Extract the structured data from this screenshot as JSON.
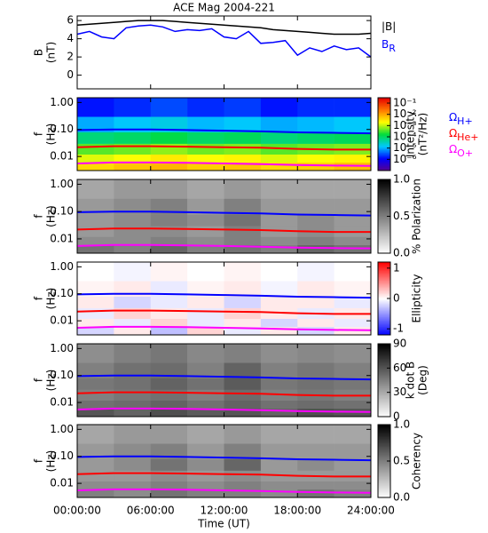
{
  "chart_data": [
    {
      "type": "line",
      "title": "ACE Mag 2004-221",
      "ylabel": [
        "B",
        "(nT)"
      ],
      "xlim": [
        0,
        24
      ],
      "xticks": [
        0,
        6,
        12,
        18,
        24
      ],
      "ylim": [
        -1.5,
        6.5
      ],
      "yticks": [
        0,
        2,
        4,
        6
      ],
      "x": [
        0,
        1,
        2,
        3,
        4,
        5,
        6,
        7,
        8,
        9,
        10,
        11,
        12,
        13,
        14,
        15,
        16,
        17,
        18,
        19,
        20,
        21,
        22,
        23,
        24
      ],
      "series": [
        {
          "name": "|B|",
          "color": "#000000",
          "values": [
            5.5,
            5.6,
            5.7,
            5.8,
            5.9,
            6.0,
            6.0,
            6.0,
            5.9,
            5.8,
            5.7,
            5.6,
            5.5,
            5.4,
            5.3,
            5.2,
            5.0,
            4.9,
            4.8,
            4.7,
            4.6,
            4.5,
            4.5,
            4.5,
            4.6
          ]
        },
        {
          "name": "B",
          "name_sub": "R",
          "color": "#0000ff",
          "values": [
            4.5,
            4.8,
            4.2,
            4.0,
            5.2,
            5.4,
            5.5,
            5.3,
            4.8,
            5.0,
            4.9,
            5.1,
            4.2,
            4.0,
            4.8,
            3.5,
            3.6,
            3.8,
            2.2,
            3.0,
            2.6,
            3.2,
            2.8,
            3.0,
            2.0
          ]
        }
      ]
    },
    {
      "type": "heatmap",
      "ylabel": [
        "f",
        "(Hz)"
      ],
      "log_y": true,
      "xlim": [
        0,
        24
      ],
      "xticks": [
        0,
        6,
        12,
        18,
        24
      ],
      "ylim": [
        0.003,
        1.5
      ],
      "yticks": [
        {
          "value": 1,
          "label": "1.00"
        },
        {
          "value": 0.1,
          "label": "0.10"
        },
        {
          "value": 0.01,
          "label": "0.01"
        }
      ],
      "x_edges": [
        0,
        3,
        6,
        9,
        12,
        15,
        18,
        21,
        24
      ],
      "y_edges": [
        0.003,
        0.006,
        0.012,
        0.03,
        0.08,
        0.3,
        1.5
      ],
      "z": [
        [
          0.004,
          0.006,
          0.008,
          0.005,
          0.006,
          0.004,
          0.005,
          0.007
        ],
        [
          0.0015,
          0.002,
          0.003,
          0.002,
          0.0025,
          0.0015,
          0.002,
          0.0025
        ],
        [
          0.0004,
          0.0005,
          0.0007,
          0.0005,
          0.0006,
          0.0004,
          0.0005,
          0.0006
        ],
        [
          8e-05,
          0.0001,
          0.00015,
          0.0001,
          0.00012,
          8e-05,
          0.0001,
          0.00012
        ],
        [
          1e-05,
          1.5e-05,
          2e-05,
          1.2e-05,
          1.5e-05,
          1e-05,
          1.2e-05,
          1.5e-05
        ],
        [
          1.5e-06,
          2e-06,
          3e-06,
          2e-06,
          2.5e-06,
          1.5e-06,
          2e-06,
          2e-06
        ]
      ],
      "colormap": "rainbow",
      "log_c": true,
      "clim": [
        1e-07,
        0.3
      ],
      "cticks": [
        {
          "value": 0.1,
          "label": "10⁻¹"
        },
        {
          "value": 0.01,
          "label": "10⁻²"
        },
        {
          "value": 0.001,
          "label": "10⁻³"
        },
        {
          "value": 0.0001,
          "label": "10⁻⁴"
        },
        {
          "value": 1e-05,
          "label": "10⁻⁵"
        },
        {
          "value": 1e-06,
          "label": "10⁻⁶"
        }
      ],
      "clabel": [
        "Intensity",
        "(nT²/Hz)"
      ],
      "x": [
        0,
        3,
        6,
        9,
        12,
        15,
        18,
        21,
        24
      ],
      "series": [
        {
          "name": "Ω",
          "name_sub": "H+",
          "color": "#0000ff",
          "values": [
            0.095,
            0.1,
            0.1,
            0.095,
            0.09,
            0.085,
            0.078,
            0.075,
            0.072
          ]
        },
        {
          "name": "Ω",
          "name_sub": "He+",
          "color": "#ff0000",
          "values": [
            0.022,
            0.024,
            0.024,
            0.023,
            0.022,
            0.021,
            0.019,
            0.018,
            0.018
          ]
        },
        {
          "name": "Ω",
          "name_sub": "O+",
          "color": "#ff00ff",
          "values": [
            0.0055,
            0.006,
            0.006,
            0.0058,
            0.0055,
            0.0052,
            0.0048,
            0.0046,
            0.0045
          ]
        }
      ]
    },
    {
      "type": "heatmap",
      "ylabel": [
        "f",
        "(Hz)"
      ],
      "log_y": true,
      "xlim": [
        0,
        24
      ],
      "xticks": [
        0,
        6,
        12,
        18,
        24
      ],
      "ylim": [
        0.003,
        1.5
      ],
      "yticks": [
        {
          "value": 1,
          "label": "1.00"
        },
        {
          "value": 0.1,
          "label": "0.10"
        },
        {
          "value": 0.01,
          "label": "0.01"
        }
      ],
      "x_edges": [
        0,
        3,
        6,
        9,
        12,
        15,
        18,
        21,
        24
      ],
      "y_edges": [
        0.003,
        0.006,
        0.012,
        0.03,
        0.08,
        0.3,
        1.5
      ],
      "z": [
        [
          0.55,
          0.5,
          0.6,
          0.5,
          0.55,
          0.5,
          0.6,
          0.55
        ],
        [
          0.45,
          0.45,
          0.5,
          0.45,
          0.5,
          0.45,
          0.5,
          0.45
        ],
        [
          0.4,
          0.45,
          0.45,
          0.4,
          0.5,
          0.4,
          0.45,
          0.4
        ],
        [
          0.4,
          0.45,
          0.5,
          0.45,
          0.55,
          0.4,
          0.45,
          0.4
        ],
        [
          0.4,
          0.45,
          0.5,
          0.4,
          0.5,
          0.4,
          0.4,
          0.4
        ],
        [
          0.35,
          0.4,
          0.4,
          0.35,
          0.4,
          0.35,
          0.35,
          0.35
        ]
      ],
      "colormap": "gray",
      "clim": [
        0,
        1
      ],
      "cticks": [
        {
          "value": 1,
          "label": "1.0"
        },
        {
          "value": 0.5,
          "label": "0.5"
        },
        {
          "value": 0,
          "label": "0.0"
        }
      ],
      "clabel": [
        "% Polarization"
      ],
      "x": [
        0,
        3,
        6,
        9,
        12,
        15,
        18,
        21,
        24
      ],
      "series": [
        {
          "color": "#0000ff",
          "values": [
            0.095,
            0.1,
            0.1,
            0.095,
            0.09,
            0.085,
            0.078,
            0.075,
            0.072
          ]
        },
        {
          "color": "#ff0000",
          "values": [
            0.022,
            0.024,
            0.024,
            0.023,
            0.022,
            0.021,
            0.019,
            0.018,
            0.018
          ]
        },
        {
          "color": "#ff00ff",
          "values": [
            0.0055,
            0.006,
            0.006,
            0.0058,
            0.0055,
            0.0052,
            0.0048,
            0.0046,
            0.0045
          ]
        }
      ]
    },
    {
      "type": "heatmap",
      "ylabel": [
        "f",
        "(Hz)"
      ],
      "log_y": true,
      "xlim": [
        0,
        24
      ],
      "xticks": [
        0,
        6,
        12,
        18,
        24
      ],
      "ylim": [
        0.003,
        1.5
      ],
      "yticks": [
        {
          "value": 1,
          "label": "1.00"
        },
        {
          "value": 0.1,
          "label": "0.10"
        },
        {
          "value": 0.01,
          "label": "0.01"
        }
      ],
      "x_edges": [
        0,
        3,
        6,
        9,
        12,
        15,
        18,
        21,
        24
      ],
      "y_edges": [
        0.003,
        0.006,
        0.012,
        0.03,
        0.08,
        0.3,
        1.5
      ],
      "z": [
        [
          -0.2,
          0.1,
          -0.3,
          0.2,
          -0.1,
          0.1,
          -0.2,
          0.1
        ],
        [
          0.1,
          -0.1,
          0.2,
          -0.1,
          0.1,
          -0.2,
          0.1,
          -0.1
        ],
        [
          -0.1,
          0.2,
          0.1,
          -0.1,
          0.2,
          0.1,
          -0.1,
          0.1
        ],
        [
          0.1,
          -0.2,
          -0.1,
          0.1,
          -0.2,
          0.1,
          0.1,
          -0.1
        ],
        [
          0.05,
          0.1,
          -0.1,
          0.05,
          0.1,
          -0.05,
          0.1,
          0.05
        ],
        [
          0.0,
          -0.05,
          0.05,
          0.0,
          0.05,
          0.0,
          -0.05,
          0.0
        ]
      ],
      "colormap": "bwr",
      "clim": [
        -1.2,
        1.2
      ],
      "cticks": [
        1,
        0,
        -1
      ],
      "clabel": [
        "Ellipticity"
      ],
      "x": [
        0,
        3,
        6,
        9,
        12,
        15,
        18,
        21,
        24
      ],
      "series": [
        {
          "color": "#0000ff",
          "values": [
            0.095,
            0.1,
            0.1,
            0.095,
            0.09,
            0.085,
            0.078,
            0.075,
            0.072
          ]
        },
        {
          "color": "#ff0000",
          "values": [
            0.022,
            0.024,
            0.024,
            0.023,
            0.022,
            0.021,
            0.019,
            0.018,
            0.018
          ]
        },
        {
          "color": "#ff00ff",
          "values": [
            0.0055,
            0.006,
            0.006,
            0.0058,
            0.0055,
            0.0052,
            0.0048,
            0.0046,
            0.0045
          ]
        }
      ]
    },
    {
      "type": "heatmap",
      "ylabel": [
        "f",
        "(Hz)"
      ],
      "log_y": true,
      "xlim": [
        0,
        24
      ],
      "xticks": [
        0,
        6,
        12,
        18,
        24
      ],
      "ylim": [
        0.003,
        1.5
      ],
      "yticks": [
        {
          "value": 1,
          "label": "1.00"
        },
        {
          "value": 0.1,
          "label": "0.10"
        },
        {
          "value": 0.01,
          "label": "0.01"
        }
      ],
      "x_edges": [
        0,
        3,
        6,
        9,
        12,
        15,
        18,
        21,
        24
      ],
      "y_edges": [
        0.003,
        0.006,
        0.012,
        0.03,
        0.08,
        0.3,
        1.5
      ],
      "z": [
        [
          60,
          55,
          62,
          58,
          60,
          55,
          62,
          60
        ],
        [
          50,
          52,
          55,
          50,
          55,
          50,
          52,
          50
        ],
        [
          45,
          48,
          50,
          45,
          52,
          45,
          48,
          45
        ],
        [
          48,
          50,
          55,
          50,
          58,
          48,
          50,
          48
        ],
        [
          45,
          50,
          52,
          45,
          55,
          45,
          48,
          45
        ],
        [
          40,
          45,
          48,
          42,
          45,
          40,
          42,
          40
        ]
      ],
      "colormap": "gray",
      "clim": [
        0,
        90
      ],
      "cticks": [
        90,
        60,
        30,
        0
      ],
      "clabel": [
        "k dot B",
        "(Deg)"
      ],
      "x": [
        0,
        3,
        6,
        9,
        12,
        15,
        18,
        21,
        24
      ],
      "series": [
        {
          "color": "#0000ff",
          "values": [
            0.095,
            0.1,
            0.1,
            0.095,
            0.09,
            0.085,
            0.078,
            0.075,
            0.072
          ]
        },
        {
          "color": "#ff0000",
          "values": [
            0.022,
            0.024,
            0.024,
            0.023,
            0.022,
            0.021,
            0.019,
            0.018,
            0.018
          ]
        },
        {
          "color": "#ff00ff",
          "values": [
            0.0055,
            0.006,
            0.006,
            0.0058,
            0.0055,
            0.0052,
            0.0048,
            0.0046,
            0.0045
          ]
        }
      ]
    },
    {
      "type": "heatmap",
      "ylabel": [
        "f",
        "(Hz)"
      ],
      "log_y": true,
      "xlim": [
        0,
        24
      ],
      "ylim": [
        0.003,
        1.5
      ],
      "xticks": [
        {
          "value": 0,
          "label": "00:00:00"
        },
        {
          "value": 6,
          "label": "06:00:00"
        },
        {
          "value": 12,
          "label": "12:00:00"
        },
        {
          "value": 18,
          "label": "18:00:00"
        },
        {
          "value": 24,
          "label": "24:00:00"
        }
      ],
      "xlabel": "Time (UT)",
      "yticks": [
        {
          "value": 1,
          "label": "1.00"
        },
        {
          "value": 0.1,
          "label": "0.10"
        },
        {
          "value": 0.01,
          "label": "0.01"
        }
      ],
      "x_edges": [
        0,
        3,
        6,
        9,
        12,
        15,
        18,
        21,
        24
      ],
      "y_edges": [
        0.003,
        0.006,
        0.012,
        0.03,
        0.08,
        0.3,
        1.5
      ],
      "z": [
        [
          0.5,
          0.45,
          0.55,
          0.5,
          0.5,
          0.45,
          0.55,
          0.5
        ],
        [
          0.45,
          0.45,
          0.5,
          0.45,
          0.5,
          0.45,
          0.45,
          0.45
        ],
        [
          0.4,
          0.4,
          0.45,
          0.4,
          0.45,
          0.4,
          0.4,
          0.4
        ],
        [
          0.4,
          0.45,
          0.55,
          0.45,
          0.6,
          0.4,
          0.45,
          0.4
        ],
        [
          0.4,
          0.45,
          0.5,
          0.4,
          0.5,
          0.4,
          0.4,
          0.4
        ],
        [
          0.35,
          0.4,
          0.4,
          0.35,
          0.4,
          0.35,
          0.35,
          0.35
        ]
      ],
      "colormap": "gray",
      "clim": [
        0,
        1
      ],
      "cticks": [
        {
          "value": 1,
          "label": "1.0"
        },
        {
          "value": 0.5,
          "label": "0.5"
        },
        {
          "value": 0,
          "label": "0.0"
        }
      ],
      "clabel": [
        "Coherency"
      ],
      "x": [
        0,
        3,
        6,
        9,
        12,
        15,
        18,
        21,
        24
      ],
      "series": [
        {
          "color": "#0000ff",
          "values": [
            0.095,
            0.1,
            0.1,
            0.095,
            0.09,
            0.085,
            0.078,
            0.075,
            0.072
          ]
        },
        {
          "color": "#ff0000",
          "values": [
            0.022,
            0.024,
            0.024,
            0.023,
            0.022,
            0.021,
            0.019,
            0.018,
            0.018
          ]
        },
        {
          "color": "#ff00ff",
          "values": [
            0.0055,
            0.006,
            0.006,
            0.0058,
            0.0055,
            0.0052,
            0.0048,
            0.0046,
            0.0045
          ]
        }
      ]
    }
  ]
}
